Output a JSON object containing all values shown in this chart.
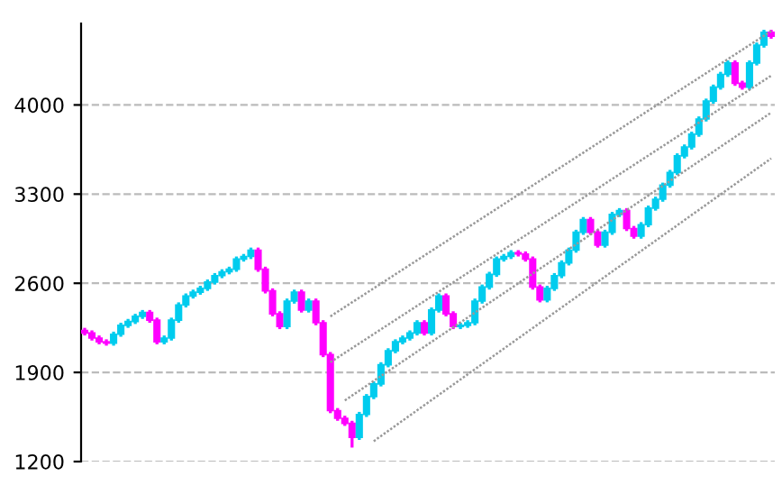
{
  "chart_data": {
    "type": "candlestick",
    "categories": [
      null,
      null,
      null,
      null,
      null,
      null,
      null,
      null,
      null,
      null,
      null,
      null,
      null,
      null,
      null,
      null,
      null,
      null,
      null,
      null,
      null,
      null,
      null,
      null,
      null,
      null,
      null,
      null,
      null,
      null,
      null,
      null,
      null,
      null,
      null,
      null,
      null,
      null,
      null,
      null,
      null,
      null,
      null,
      null,
      null,
      null,
      null,
      null,
      null,
      null,
      null,
      null,
      null,
      null,
      null,
      null,
      null,
      null,
      null,
      null,
      null,
      null,
      null,
      null,
      null,
      null,
      null,
      null,
      null,
      null,
      null,
      null,
      null,
      null,
      null,
      null,
      null,
      null,
      null,
      null,
      null,
      null,
      null,
      null,
      null,
      null,
      null,
      null,
      null,
      null,
      null,
      null,
      null,
      null,
      null,
      null
    ],
    "ohlc": [
      [
        2230,
        2250,
        2190,
        2210
      ],
      [
        2210,
        2230,
        2150,
        2170
      ],
      [
        2170,
        2190,
        2120,
        2140
      ],
      [
        2140,
        2160,
        2110,
        2130
      ],
      [
        2130,
        2220,
        2110,
        2200
      ],
      [
        2200,
        2290,
        2180,
        2270
      ],
      [
        2270,
        2320,
        2250,
        2300
      ],
      [
        2300,
        2360,
        2280,
        2340
      ],
      [
        2340,
        2390,
        2320,
        2370
      ],
      [
        2370,
        2390,
        2290,
        2310
      ],
      [
        2310,
        2330,
        2120,
        2140
      ],
      [
        2140,
        2190,
        2120,
        2170
      ],
      [
        2170,
        2330,
        2150,
        2310
      ],
      [
        2310,
        2450,
        2290,
        2430
      ],
      [
        2430,
        2520,
        2410,
        2500
      ],
      [
        2500,
        2550,
        2480,
        2530
      ],
      [
        2530,
        2580,
        2510,
        2560
      ],
      [
        2560,
        2630,
        2540,
        2610
      ],
      [
        2610,
        2680,
        2590,
        2660
      ],
      [
        2660,
        2710,
        2640,
        2690
      ],
      [
        2690,
        2730,
        2670,
        2710
      ],
      [
        2710,
        2810,
        2690,
        2790
      ],
      [
        2790,
        2830,
        2770,
        2810
      ],
      [
        2810,
        2880,
        2790,
        2860
      ],
      [
        2860,
        2880,
        2690,
        2710
      ],
      [
        2710,
        2730,
        2520,
        2540
      ],
      [
        2540,
        2560,
        2340,
        2360
      ],
      [
        2360,
        2380,
        2240,
        2260
      ],
      [
        2260,
        2480,
        2240,
        2460
      ],
      [
        2460,
        2550,
        2440,
        2530
      ],
      [
        2530,
        2550,
        2370,
        2390
      ],
      [
        2390,
        2480,
        2370,
        2460
      ],
      [
        2460,
        2480,
        2270,
        2290
      ],
      [
        2290,
        2310,
        2020,
        2040
      ],
      [
        2040,
        2060,
        1580,
        1600
      ],
      [
        1600,
        1620,
        1520,
        1540
      ],
      [
        1540,
        1560,
        1480,
        1500
      ],
      [
        1500,
        1520,
        1310,
        1390
      ],
      [
        1390,
        1590,
        1370,
        1570
      ],
      [
        1570,
        1730,
        1550,
        1710
      ],
      [
        1710,
        1830,
        1690,
        1810
      ],
      [
        1810,
        1980,
        1790,
        1960
      ],
      [
        1960,
        2090,
        1940,
        2070
      ],
      [
        2070,
        2160,
        2050,
        2140
      ],
      [
        2140,
        2190,
        2120,
        2170
      ],
      [
        2170,
        2230,
        2150,
        2210
      ],
      [
        2210,
        2310,
        2190,
        2290
      ],
      [
        2290,
        2310,
        2190,
        2210
      ],
      [
        2210,
        2410,
        2190,
        2390
      ],
      [
        2390,
        2520,
        2370,
        2500
      ],
      [
        2500,
        2520,
        2340,
        2360
      ],
      [
        2360,
        2380,
        2240,
        2260
      ],
      [
        2260,
        2290,
        2240,
        2270
      ],
      [
        2270,
        2310,
        2250,
        2290
      ],
      [
        2290,
        2480,
        2270,
        2460
      ],
      [
        2460,
        2590,
        2440,
        2570
      ],
      [
        2570,
        2690,
        2550,
        2670
      ],
      [
        2670,
        2810,
        2650,
        2790
      ],
      [
        2790,
        2830,
        2770,
        2810
      ],
      [
        2810,
        2860,
        2790,
        2840
      ],
      [
        2840,
        2860,
        2810,
        2830
      ],
      [
        2830,
        2850,
        2770,
        2790
      ],
      [
        2790,
        2810,
        2550,
        2570
      ],
      [
        2570,
        2590,
        2450,
        2470
      ],
      [
        2470,
        2580,
        2450,
        2560
      ],
      [
        2560,
        2680,
        2540,
        2660
      ],
      [
        2660,
        2780,
        2640,
        2760
      ],
      [
        2760,
        2880,
        2740,
        2860
      ],
      [
        2860,
        3020,
        2840,
        3000
      ],
      [
        3000,
        3120,
        2980,
        3100
      ],
      [
        3100,
        3120,
        2980,
        3000
      ],
      [
        3000,
        3020,
        2880,
        2900
      ],
      [
        2900,
        3020,
        2880,
        3000
      ],
      [
        3000,
        3160,
        2980,
        3140
      ],
      [
        3140,
        3190,
        3120,
        3170
      ],
      [
        3170,
        3190,
        3010,
        3030
      ],
      [
        3030,
        3050,
        2950,
        2970
      ],
      [
        2970,
        3080,
        2950,
        3060
      ],
      [
        3060,
        3210,
        3040,
        3190
      ],
      [
        3190,
        3280,
        3170,
        3260
      ],
      [
        3260,
        3390,
        3240,
        3370
      ],
      [
        3370,
        3490,
        3350,
        3470
      ],
      [
        3470,
        3620,
        3450,
        3600
      ],
      [
        3600,
        3690,
        3580,
        3670
      ],
      [
        3670,
        3790,
        3650,
        3770
      ],
      [
        3770,
        3910,
        3750,
        3890
      ],
      [
        3890,
        4050,
        3870,
        4030
      ],
      [
        4030,
        4160,
        4010,
        4140
      ],
      [
        4140,
        4260,
        4120,
        4240
      ],
      [
        4240,
        4350,
        4220,
        4330
      ],
      [
        4330,
        4350,
        4150,
        4170
      ],
      [
        4170,
        4190,
        4120,
        4140
      ],
      [
        4140,
        4350,
        4120,
        4330
      ],
      [
        4330,
        4490,
        4310,
        4470
      ],
      [
        4470,
        4590,
        4450,
        4570
      ],
      [
        4570,
        4590,
        4520,
        4540
      ]
    ],
    "colors": [
      "#ff00ff",
      "#ff00ff",
      "#ff00ff",
      "#ff00ff",
      "#00ccee",
      "#00ccee",
      "#00ccee",
      "#00ccee",
      "#00ccee",
      "#ff00ff",
      "#ff00ff",
      "#00ccee",
      "#00ccee",
      "#00ccee",
      "#00ccee",
      "#00ccee",
      "#00ccee",
      "#00ccee",
      "#00ccee",
      "#00ccee",
      "#00ccee",
      "#00ccee",
      "#00ccee",
      "#00ccee",
      "#ff00ff",
      "#ff00ff",
      "#ff00ff",
      "#ff00ff",
      "#00ccee",
      "#00ccee",
      "#ff00ff",
      "#00ccee",
      "#ff00ff",
      "#ff00ff",
      "#ff00ff",
      "#ff00ff",
      "#ff00ff",
      "#ff00ff",
      "#00ccee",
      "#00ccee",
      "#00ccee",
      "#00ccee",
      "#00ccee",
      "#00ccee",
      "#00ccee",
      "#00ccee",
      "#00ccee",
      "#ff00ff",
      "#00ccee",
      "#00ccee",
      "#ff00ff",
      "#ff00ff",
      "#00ccee",
      "#00ccee",
      "#00ccee",
      "#00ccee",
      "#00ccee",
      "#00ccee",
      "#00ccee",
      "#00ccee",
      "#ff00ff",
      "#ff00ff",
      "#ff00ff",
      "#ff00ff",
      "#00ccee",
      "#00ccee",
      "#00ccee",
      "#00ccee",
      "#00ccee",
      "#00ccee",
      "#ff00ff",
      "#ff00ff",
      "#00ccee",
      "#00ccee",
      "#00ccee",
      "#ff00ff",
      "#ff00ff",
      "#00ccee",
      "#00ccee",
      "#00ccee",
      "#00ccee",
      "#00ccee",
      "#00ccee",
      "#00ccee",
      "#00ccee",
      "#00ccee",
      "#00ccee",
      "#00ccee",
      "#00ccee",
      "#00ccee",
      "#ff00ff",
      "#ff00ff",
      "#00ccee",
      "#00ccee",
      "#00ccee",
      "#ff00ff"
    ],
    "series": [
      {
        "type": "line",
        "values": [
          null,
          null,
          null,
          null,
          null,
          null,
          null,
          null,
          null,
          null,
          null,
          null,
          null,
          null,
          null,
          null,
          null,
          null,
          null,
          null,
          null,
          null,
          null,
          null,
          null,
          null,
          null,
          null,
          null,
          null,
          null,
          null,
          null,
          null,
          2340,
          null,
          null,
          null,
          null,
          null,
          null,
          null,
          null,
          null,
          null,
          null,
          null,
          null,
          null,
          null,
          null,
          null,
          null,
          null,
          null,
          null,
          null,
          null,
          null,
          null,
          null,
          null,
          null,
          null,
          null,
          null,
          null,
          null,
          null,
          null,
          null,
          null,
          null,
          null,
          null,
          null,
          null,
          null,
          null,
          null,
          null,
          null,
          null,
          null,
          null,
          null,
          null,
          null,
          null,
          null,
          null,
          null,
          null,
          null,
          null,
          4580
        ],
        "color": "#999999",
        "line_style": "dotted"
      },
      {
        "type": "line",
        "values": [
          null,
          null,
          null,
          null,
          null,
          null,
          null,
          null,
          null,
          null,
          null,
          null,
          null,
          null,
          null,
          null,
          null,
          null,
          null,
          null,
          null,
          null,
          null,
          null,
          null,
          null,
          null,
          null,
          null,
          null,
          null,
          null,
          null,
          null,
          1980,
          null,
          null,
          null,
          null,
          null,
          null,
          null,
          null,
          null,
          null,
          null,
          null,
          null,
          null,
          null,
          null,
          null,
          null,
          null,
          null,
          null,
          null,
          null,
          null,
          null,
          null,
          null,
          null,
          null,
          null,
          null,
          null,
          null,
          null,
          null,
          null,
          null,
          null,
          null,
          null,
          null,
          null,
          null,
          null,
          null,
          null,
          null,
          null,
          null,
          null,
          null,
          null,
          null,
          null,
          null,
          null,
          null,
          null,
          null,
          null,
          4230
        ],
        "color": "#999999",
        "line_style": "dotted"
      },
      {
        "type": "line",
        "values": [
          null,
          null,
          null,
          null,
          null,
          null,
          null,
          null,
          null,
          null,
          null,
          null,
          null,
          null,
          null,
          null,
          null,
          null,
          null,
          null,
          null,
          null,
          null,
          null,
          null,
          null,
          null,
          null,
          null,
          null,
          null,
          null,
          null,
          null,
          null,
          null,
          1680,
          null,
          null,
          null,
          null,
          null,
          null,
          null,
          null,
          null,
          null,
          null,
          null,
          null,
          null,
          null,
          null,
          null,
          null,
          null,
          null,
          null,
          null,
          null,
          null,
          null,
          null,
          null,
          null,
          null,
          null,
          null,
          null,
          null,
          null,
          null,
          null,
          null,
          null,
          null,
          null,
          null,
          null,
          null,
          null,
          null,
          null,
          null,
          null,
          null,
          null,
          null,
          null,
          null,
          null,
          null,
          null,
          null,
          null,
          3940
        ],
        "color": "#999999",
        "line_style": "dotted"
      },
      {
        "type": "line",
        "values": [
          null,
          null,
          null,
          null,
          null,
          null,
          null,
          null,
          null,
          null,
          null,
          null,
          null,
          null,
          null,
          null,
          null,
          null,
          null,
          null,
          null,
          null,
          null,
          null,
          null,
          null,
          null,
          null,
          null,
          null,
          null,
          null,
          null,
          null,
          null,
          null,
          null,
          null,
          null,
          null,
          1360,
          null,
          null,
          null,
          null,
          null,
          null,
          null,
          null,
          null,
          null,
          null,
          null,
          null,
          null,
          null,
          null,
          null,
          null,
          null,
          null,
          null,
          null,
          null,
          null,
          null,
          null,
          null,
          null,
          null,
          null,
          null,
          null,
          null,
          null,
          null,
          null,
          null,
          null,
          null,
          null,
          null,
          null,
          null,
          null,
          null,
          null,
          null,
          null,
          null,
          null,
          null,
          null,
          null,
          null,
          3580
        ],
        "color": "#999999",
        "line_style": "dotted"
      }
    ],
    "ylim": [
      1200,
      4640
    ],
    "yticks": [
      1200,
      1900,
      2600,
      3300,
      4000
    ],
    "grid": "y",
    "tick_labels": "y"
  }
}
